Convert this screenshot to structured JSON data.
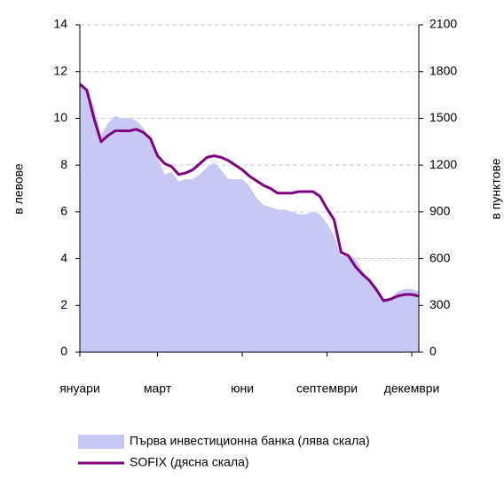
{
  "chart_data": {
    "type": "combo",
    "y_label": "в левове",
    "y2_label": "в пунктове",
    "categories": [
      "януари",
      null,
      null,
      null,
      null,
      null,
      null,
      null,
      null,
      null,
      null,
      "март",
      null,
      null,
      null,
      null,
      null,
      null,
      null,
      null,
      null,
      null,
      null,
      "юни",
      null,
      null,
      null,
      null,
      null,
      null,
      null,
      null,
      null,
      null,
      null,
      "септември",
      null,
      null,
      null,
      null,
      null,
      null,
      null,
      null,
      null,
      null,
      null,
      "декември",
      null
    ],
    "series": [
      {
        "name": "Първа инвестиционна банка (лява скала)",
        "type": "area",
        "color": "#c8c8f5",
        "axis": "y",
        "values": [
          11.5,
          11.2,
          10.5,
          9.3,
          9.8,
          10.1,
          10.0,
          10.0,
          9.9,
          9.6,
          9.0,
          8.3,
          7.6,
          7.7,
          7.3,
          7.4,
          7.4,
          7.6,
          7.9,
          8.1,
          7.8,
          7.4,
          7.4,
          7.4,
          7.1,
          6.6,
          6.3,
          6.2,
          6.1,
          6.1,
          6.0,
          5.9,
          5.9,
          6.0,
          5.9,
          5.5,
          5.0,
          4.1,
          4.2,
          4.0,
          3.5,
          3.0,
          2.8,
          2.3,
          2.3,
          2.6,
          2.7,
          2.7,
          2.6
        ]
      },
      {
        "name": "SOFIX (дясна скала)",
        "type": "line",
        "color": "#800080",
        "axis": "y2",
        "values": [
          1720,
          1680,
          1500,
          1350,
          1390,
          1420,
          1420,
          1420,
          1430,
          1410,
          1370,
          1260,
          1210,
          1190,
          1140,
          1150,
          1170,
          1210,
          1250,
          1260,
          1250,
          1230,
          1200,
          1170,
          1130,
          1100,
          1070,
          1050,
          1020,
          1020,
          1020,
          1030,
          1030,
          1030,
          1000,
          920,
          850,
          640,
          620,
          550,
          500,
          460,
          400,
          330,
          340,
          360,
          370,
          370,
          360
        ]
      }
    ],
    "ylim": [
      0,
      14
    ],
    "yticks": [
      0,
      2,
      4,
      6,
      8,
      10,
      12,
      14
    ],
    "y2lim": [
      0,
      2100
    ],
    "y2ticks": [
      0,
      300,
      600,
      900,
      1200,
      1500,
      1800,
      2100
    ],
    "grid": true
  }
}
